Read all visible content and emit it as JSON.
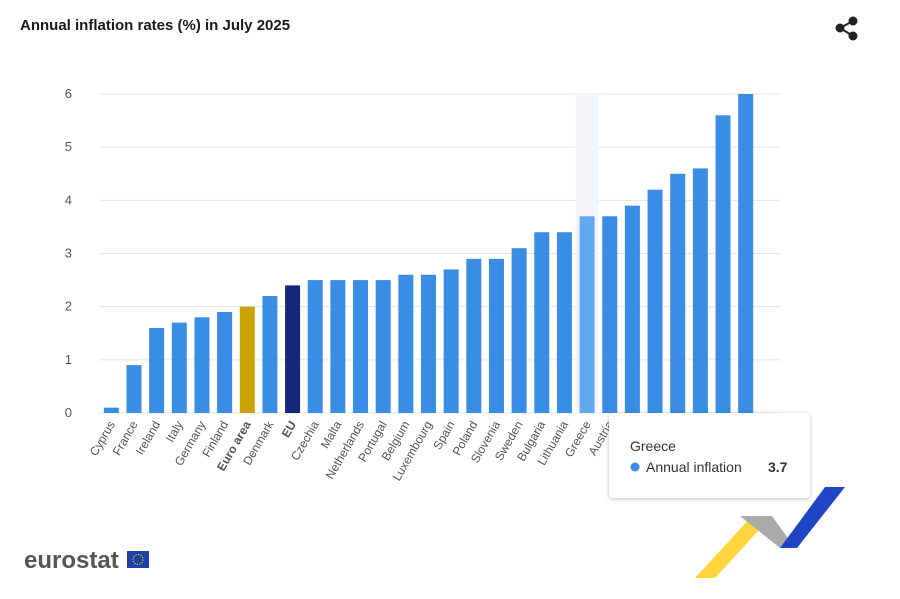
{
  "chart_data": {
    "type": "bar",
    "title": "Annual inflation rates (%) in July 2025",
    "series_name": "Annual inflation",
    "categories": [
      "Cyprus",
      "France",
      "Ireland",
      "Italy",
      "Germany",
      "Finland",
      "Euro area",
      "Denmark",
      "EU",
      "Czechia",
      "Malta",
      "Netherlands",
      "Portugal",
      "Belgium",
      "Luxembourg",
      "Spain",
      "Poland",
      "Slovenia",
      "Sweden",
      "Bulgaria",
      "Lithuania",
      "Greece",
      "Austria",
      null,
      null,
      null,
      null,
      null,
      null
    ],
    "values": [
      0.1,
      0.9,
      1.6,
      1.7,
      1.8,
      1.9,
      2.0,
      2.2,
      2.4,
      2.5,
      2.5,
      2.5,
      2.5,
      2.6,
      2.6,
      2.7,
      2.9,
      2.9,
      3.1,
      3.4,
      3.4,
      3.7,
      3.7,
      3.9,
      4.2,
      4.5,
      4.6,
      5.6,
      6.0
    ],
    "color": "#3a8de4",
    "special_colors": {
      "6": "#c9a300",
      "8": "#14287a",
      "21": "#62a8f0"
    },
    "emphasized": [
      6,
      8
    ],
    "ylim": [
      0,
      6
    ],
    "yticks": [
      0,
      1,
      2,
      3,
      4,
      5,
      6
    ],
    "grid": true,
    "tooltip_index": 21
  },
  "brand": "eurostat"
}
